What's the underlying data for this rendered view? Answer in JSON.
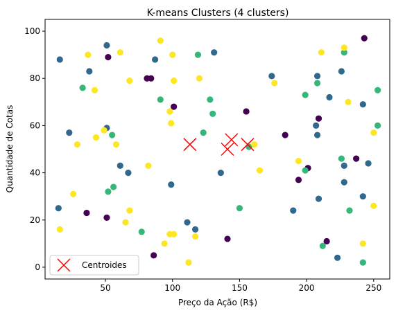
{
  "chart_data": {
    "type": "scatter",
    "title": "K-means Clusters (4 clusters)",
    "xlabel": "Preço da Ação (R$)",
    "ylabel": "Quantidade de Cotas",
    "xlim": [
      5,
      262
    ],
    "ylim": [
      -5,
      105
    ],
    "xticks": [
      50,
      100,
      150,
      200,
      250
    ],
    "yticks": [
      0,
      20,
      40,
      60,
      80,
      100
    ],
    "grid": false,
    "legend_position": "bottom-left",
    "colors": {
      "cluster_0": "#440154",
      "cluster_1": "#31688e",
      "cluster_2": "#35b779",
      "cluster_3": "#fde725",
      "centroids": "#ff0000"
    },
    "series": [
      {
        "id": "cluster_0",
        "points": [
          [
            243,
            97
          ],
          [
            52,
            89
          ],
          [
            81,
            80
          ],
          [
            84,
            80
          ],
          [
            101,
            68
          ],
          [
            155,
            66
          ],
          [
            209,
            63
          ],
          [
            184,
            56
          ],
          [
            201,
            42
          ],
          [
            194,
            37
          ],
          [
            237,
            46
          ],
          [
            36,
            23
          ],
          [
            51,
            21
          ],
          [
            215,
            11
          ],
          [
            141,
            12
          ],
          [
            86,
            5
          ]
        ]
      },
      {
        "id": "cluster_1",
        "points": [
          [
            16,
            88
          ],
          [
            51,
            94
          ],
          [
            131,
            91
          ],
          [
            87,
            88
          ],
          [
            38,
            83
          ],
          [
            174,
            81
          ],
          [
            208,
            81
          ],
          [
            226,
            83
          ],
          [
            217,
            72
          ],
          [
            242,
            69
          ],
          [
            51,
            59
          ],
          [
            23,
            57
          ],
          [
            207,
            60
          ],
          [
            208,
            56
          ],
          [
            61,
            43
          ],
          [
            67,
            40
          ],
          [
            99,
            35
          ],
          [
            136,
            40
          ],
          [
            228,
            43
          ],
          [
            246,
            44
          ],
          [
            228,
            36
          ],
          [
            15,
            25
          ],
          [
            209,
            29
          ],
          [
            242,
            30
          ],
          [
            190,
            24
          ],
          [
            111,
            19
          ],
          [
            117,
            16
          ],
          [
            223,
            4
          ]
        ]
      },
      {
        "id": "cluster_2",
        "points": [
          [
            119,
            90
          ],
          [
            228,
            91
          ],
          [
            33,
            76
          ],
          [
            91,
            71
          ],
          [
            128,
            71
          ],
          [
            130,
            65
          ],
          [
            199,
            73
          ],
          [
            208,
            78
          ],
          [
            253,
            75
          ],
          [
            253,
            60
          ],
          [
            55,
            56
          ],
          [
            123,
            57
          ],
          [
            157,
            51
          ],
          [
            226,
            46
          ],
          [
            199,
            41
          ],
          [
            56,
            34
          ],
          [
            52,
            32
          ],
          [
            150,
            25
          ],
          [
            232,
            24
          ],
          [
            77,
            15
          ],
          [
            212,
            9
          ],
          [
            242,
            2
          ]
        ]
      },
      {
        "id": "cluster_3",
        "points": [
          [
            91,
            96
          ],
          [
            228,
            93
          ],
          [
            37,
            90
          ],
          [
            61,
            91
          ],
          [
            100,
            90
          ],
          [
            211,
            91
          ],
          [
            42,
            75
          ],
          [
            68,
            79
          ],
          [
            101,
            79
          ],
          [
            120,
            80
          ],
          [
            176,
            78
          ],
          [
            231,
            70
          ],
          [
            98,
            66
          ],
          [
            99,
            61
          ],
          [
            49,
            58
          ],
          [
            58,
            52
          ],
          [
            29,
            52
          ],
          [
            43,
            55
          ],
          [
            161,
            52
          ],
          [
            250,
            57
          ],
          [
            82,
            43
          ],
          [
            194,
            45
          ],
          [
            165,
            41
          ],
          [
            26,
            31
          ],
          [
            68,
            24
          ],
          [
            16,
            16
          ],
          [
            65,
            19
          ],
          [
            250,
            26
          ],
          [
            94,
            10
          ],
          [
            98,
            14
          ],
          [
            101,
            14
          ],
          [
            117,
            13
          ],
          [
            242,
            10
          ],
          [
            112,
            2
          ]
        ]
      }
    ],
    "centroids": {
      "name": "Centroides",
      "points": [
        [
          113,
          52
        ],
        [
          141,
          50
        ],
        [
          144,
          54
        ],
        [
          156,
          52
        ]
      ]
    }
  }
}
